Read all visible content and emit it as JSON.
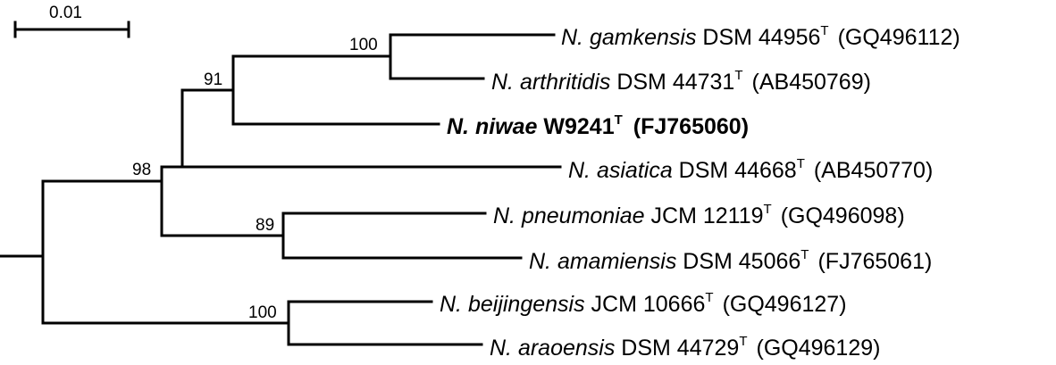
{
  "scale_bar": {
    "label": "0.01"
  },
  "taxa": [
    {
      "genus": "N. ",
      "species": "gamkensis",
      "strain": " DSM 44956",
      "type_mark": "T",
      "accession": "(GQ496112)",
      "bold": false
    },
    {
      "genus": "N. ",
      "species": "arthritidis",
      "strain": " DSM 44731",
      "type_mark": "T",
      "accession": "(AB450769)",
      "bold": false
    },
    {
      "genus": "N. ",
      "species": "niwae",
      "strain": " W9241",
      "type_mark": "T",
      "accession": "(FJ765060)",
      "bold": true
    },
    {
      "genus": "N. ",
      "species": "asiatica",
      "strain": " DSM 44668",
      "type_mark": "T",
      "accession": "(AB450770)",
      "bold": false
    },
    {
      "genus": "N. ",
      "species": "pneumoniae",
      "strain": " JCM 12119",
      "type_mark": "T",
      "accession": "(GQ496098)",
      "bold": false
    },
    {
      "genus": "N. ",
      "species": "amamiensis",
      "strain": " DSM 45066",
      "type_mark": "T",
      "accession": "(FJ765061)",
      "bold": false
    },
    {
      "genus": "N. ",
      "species": "beijingensis",
      "strain": " JCM 10666",
      "type_mark": "T",
      "accession": "(GQ496127)",
      "bold": false
    },
    {
      "genus": "N. ",
      "species": "araoensis",
      "strain": " DSM 44729",
      "type_mark": "T",
      "accession": "(GQ496129)",
      "bold": false
    }
  ],
  "bootstrap": {
    "gamkensis_arthritidis": "100",
    "with_niwae": "91",
    "main_clade": "98",
    "pneumoniae_amamiensis": "89",
    "beijingensis_araoensis": "100"
  }
}
